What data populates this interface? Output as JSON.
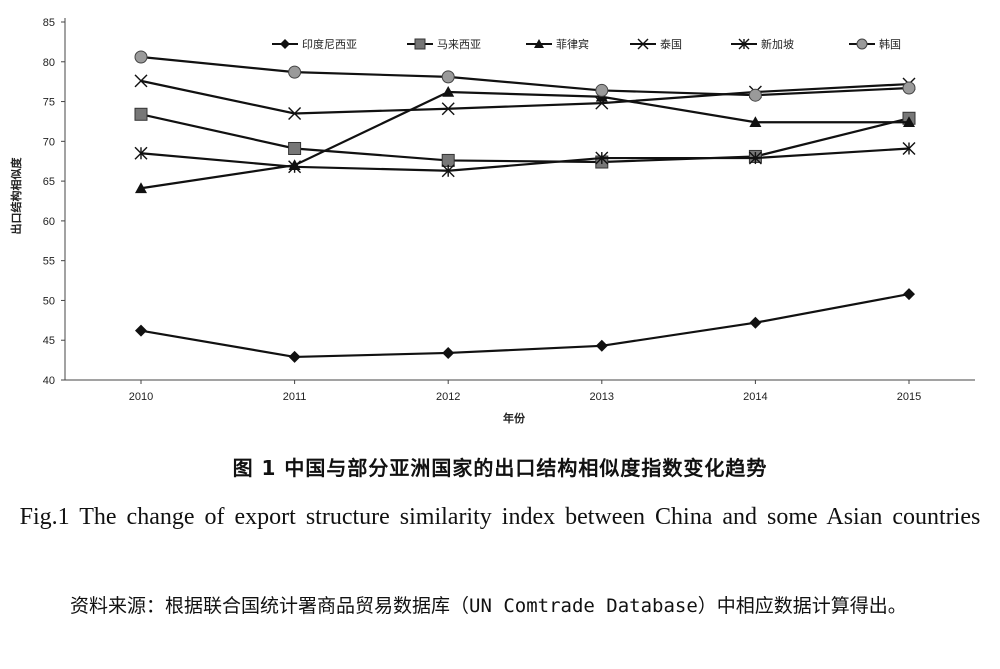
{
  "figure": {
    "title_cn": "图 1  中国与部分亚洲国家的出口结构相似度指数变化趋势",
    "title_en": "Fig.1 The change of export structure similarity index between China and some Asian countries",
    "source_note": "资料来源：根据联合国统计署商品贸易数据库（UN Comtrade Database）中相应数据计算得出。"
  },
  "chart_data": {
    "type": "line",
    "title": "",
    "xlabel": "年份",
    "ylabel": "出口结构相似度",
    "categories": [
      "2010",
      "2011",
      "2012",
      "2013",
      "2014",
      "2015"
    ],
    "ylim": [
      40,
      85
    ],
    "yticks": [
      40,
      45,
      50,
      55,
      60,
      65,
      70,
      75,
      80,
      85
    ],
    "grid": false,
    "legend_position": "top",
    "series": [
      {
        "name": "印度尼西亚",
        "marker": "diamond",
        "color": "#111111",
        "values": [
          46.2,
          42.9,
          43.4,
          44.3,
          47.2,
          50.8
        ]
      },
      {
        "name": "马来西亚",
        "marker": "square",
        "color": "#111111",
        "values": [
          73.4,
          69.1,
          67.6,
          67.4,
          68.1,
          72.9
        ]
      },
      {
        "name": "菲律宾",
        "marker": "triangle",
        "color": "#111111",
        "values": [
          64.1,
          67.0,
          76.2,
          75.6,
          72.4,
          72.4
        ]
      },
      {
        "name": "泰国",
        "marker": "x",
        "color": "#111111",
        "values": [
          77.6,
          73.5,
          74.1,
          74.8,
          76.2,
          77.2
        ]
      },
      {
        "name": "新加坡",
        "marker": "star",
        "color": "#111111",
        "values": [
          68.5,
          66.8,
          66.3,
          67.9,
          67.9,
          69.1
        ]
      },
      {
        "name": "韩国",
        "marker": "circle",
        "color": "#111111",
        "values": [
          80.6,
          78.7,
          78.1,
          76.4,
          75.8,
          76.7
        ]
      }
    ]
  }
}
